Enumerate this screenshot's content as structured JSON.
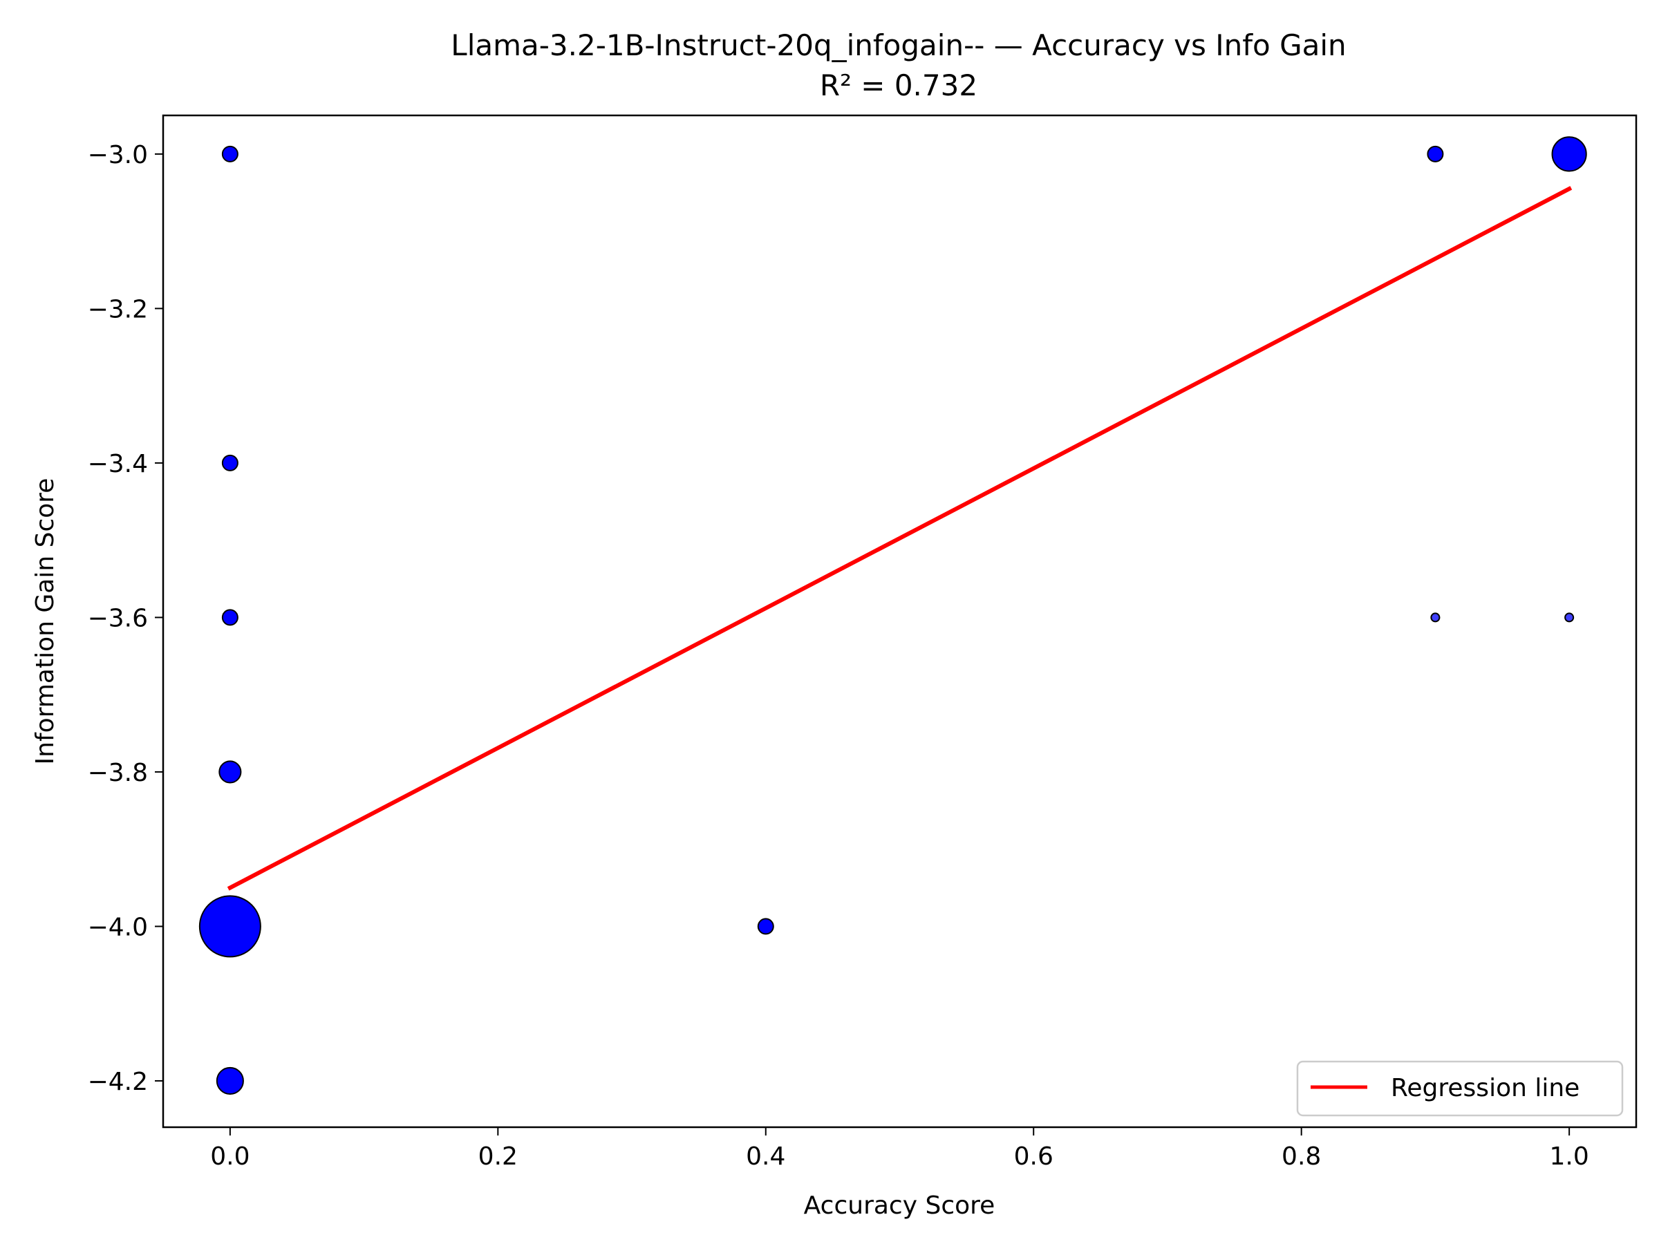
{
  "chart_data": {
    "type": "scatter",
    "title": "Llama-3.2-1B-Instruct-20q_infogain-- — Accuracy vs Info Gain",
    "subtitle": "R² = 0.732",
    "xlabel": "Accuracy Score",
    "ylabel": "Information Gain Score",
    "xlim": [
      -0.05,
      1.05
    ],
    "ylim": [
      -4.26,
      -2.95
    ],
    "xticks": [
      0.0,
      0.2,
      0.4,
      0.6,
      0.8,
      1.0
    ],
    "xtick_labels": [
      "0.0",
      "0.2",
      "0.4",
      "0.6",
      "0.8",
      "1.0"
    ],
    "yticks": [
      -4.2,
      -4.0,
      -3.8,
      -3.6,
      -3.4,
      -3.2,
      -3.0
    ],
    "ytick_labels": [
      "−4.2",
      "−4.0",
      "−3.8",
      "−3.6",
      "−3.4",
      "−3.2",
      "−3.0"
    ],
    "grid": false,
    "points": [
      {
        "x": 0.0,
        "y": -3.0,
        "count": 1
      },
      {
        "x": 0.0,
        "y": -3.4,
        "count": 1
      },
      {
        "x": 0.0,
        "y": -3.6,
        "count": 1
      },
      {
        "x": 0.0,
        "y": -3.8,
        "count": 2
      },
      {
        "x": 0.0,
        "y": -4.0,
        "count": 16
      },
      {
        "x": 0.0,
        "y": -4.2,
        "count": 3
      },
      {
        "x": 0.4,
        "y": -4.0,
        "count": 1
      },
      {
        "x": 0.9,
        "y": -3.0,
        "count": 1
      },
      {
        "x": 0.9,
        "y": -3.6,
        "count": 0.3
      },
      {
        "x": 1.0,
        "y": -3.0,
        "count": 5
      },
      {
        "x": 1.0,
        "y": -3.6,
        "count": 0.3
      }
    ],
    "point_color": "#0000ff",
    "regression": {
      "x": [
        0.0,
        1.0
      ],
      "y": [
        -3.95,
        -3.045
      ],
      "color": "#ff0000"
    },
    "legend": {
      "position": "lower-right",
      "entries": [
        "Regression line"
      ]
    }
  }
}
